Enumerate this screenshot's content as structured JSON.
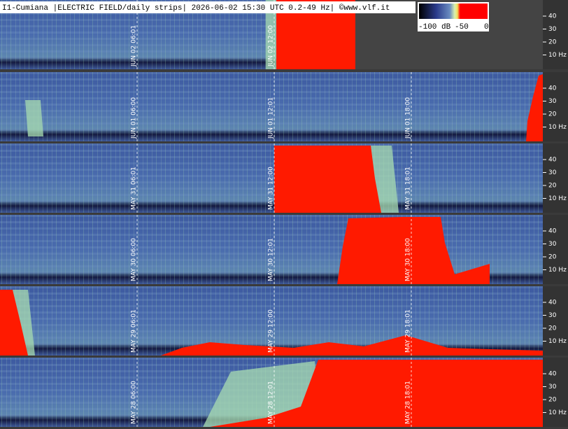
{
  "header": {
    "title": "I1-Cumiana |ELECTRIC FIELD/daily strips| 2026-06-02 15:30 UTC 0.2-49 Hz| ©www.vlf.it"
  },
  "colorbar": {
    "labels": [
      "-100 dB",
      "-50",
      "0"
    ]
  },
  "strips": [
    {
      "y_ticks": [
        "40",
        "30",
        "20",
        "10 Hz"
      ],
      "time_labels": [
        "JUN 02 06:01",
        "JUN 02 12:00"
      ]
    },
    {
      "y_ticks": [
        "40",
        "30",
        "20",
        "10 Hz"
      ],
      "time_labels": [
        "JUN 01 06:00",
        "JUN 01 12:01",
        "JUN 01 18:00"
      ]
    },
    {
      "y_ticks": [
        "40",
        "30",
        "20",
        "10 Hz"
      ],
      "time_labels": [
        "MAY 31 06:01",
        "MAY 31 12:00",
        "MAY 31 18:01"
      ]
    },
    {
      "y_ticks": [
        "40",
        "30",
        "20",
        "10 Hz"
      ],
      "time_labels": [
        "MAY 30 06:00",
        "MAY 30 12:01",
        "MAY 30 18:00"
      ]
    },
    {
      "y_ticks": [
        "40",
        "30",
        "20",
        "10 Hz"
      ],
      "time_labels": [
        "MAY 29 06:01",
        "MAY 29 12:00",
        "MAY 29 18:01"
      ]
    },
    {
      "y_ticks": [
        "40",
        "30",
        "20",
        "10 Hz"
      ],
      "time_labels": [
        "MAY 28 06:00",
        "MAY 28 12:01",
        "MAY 28 18:01"
      ]
    }
  ]
}
